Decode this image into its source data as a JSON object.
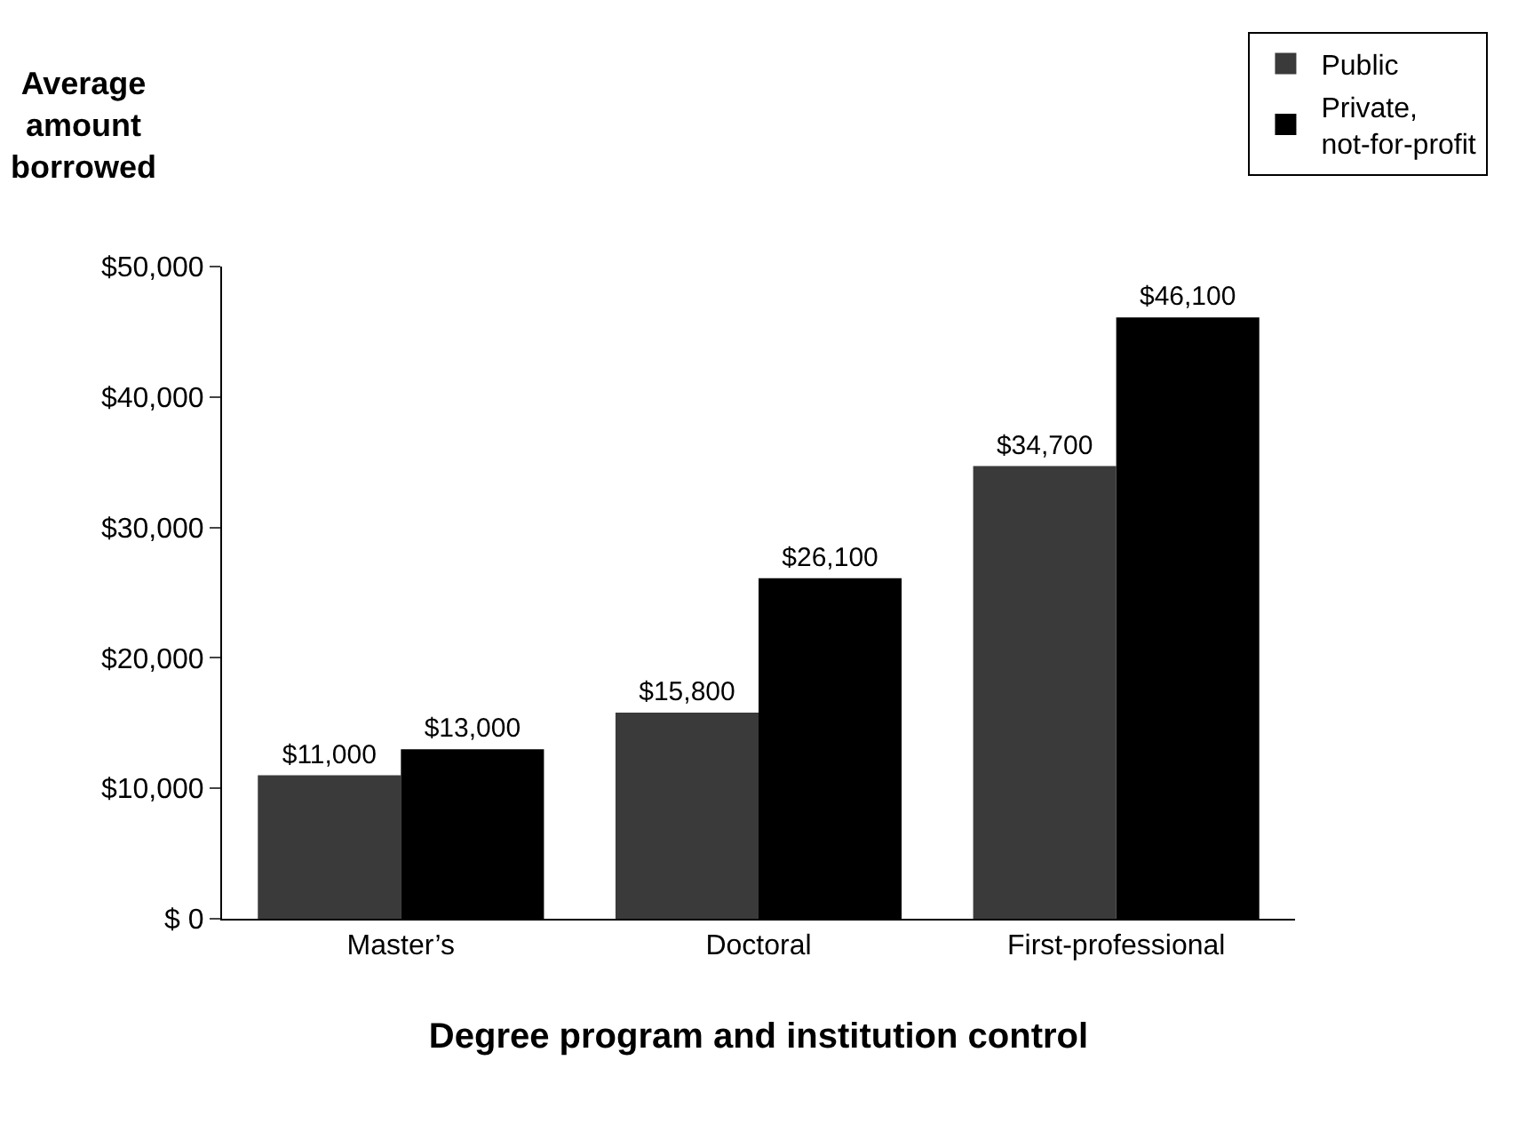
{
  "chart_data": {
    "type": "bar",
    "ylabel": "Average amount borrowed",
    "xlabel": "Degree program and institution control",
    "categories": [
      "Master’s",
      "Doctoral",
      "First-professional"
    ],
    "series": [
      {
        "name": "Public",
        "color": "#3a3a3a",
        "values": [
          11000,
          15800,
          34700
        ],
        "value_labels": [
          "$11,000",
          "$15,800",
          "$34,700"
        ]
      },
      {
        "name": "Private, not-for-profit",
        "color": "#000000",
        "values": [
          13000,
          26100,
          46100
        ],
        "value_labels": [
          "$13,000",
          "$26,100",
          "$46,100"
        ]
      }
    ],
    "ylim": [
      0,
      50000
    ],
    "yticks": [
      {
        "value": 0,
        "label": "$ 0"
      },
      {
        "value": 10000,
        "label": "$10,000"
      },
      {
        "value": 20000,
        "label": "$20,000"
      },
      {
        "value": 30000,
        "label": "$30,000"
      },
      {
        "value": 40000,
        "label": "$40,000"
      },
      {
        "value": 50000,
        "label": "$50,000"
      }
    ],
    "legend": "top right"
  }
}
